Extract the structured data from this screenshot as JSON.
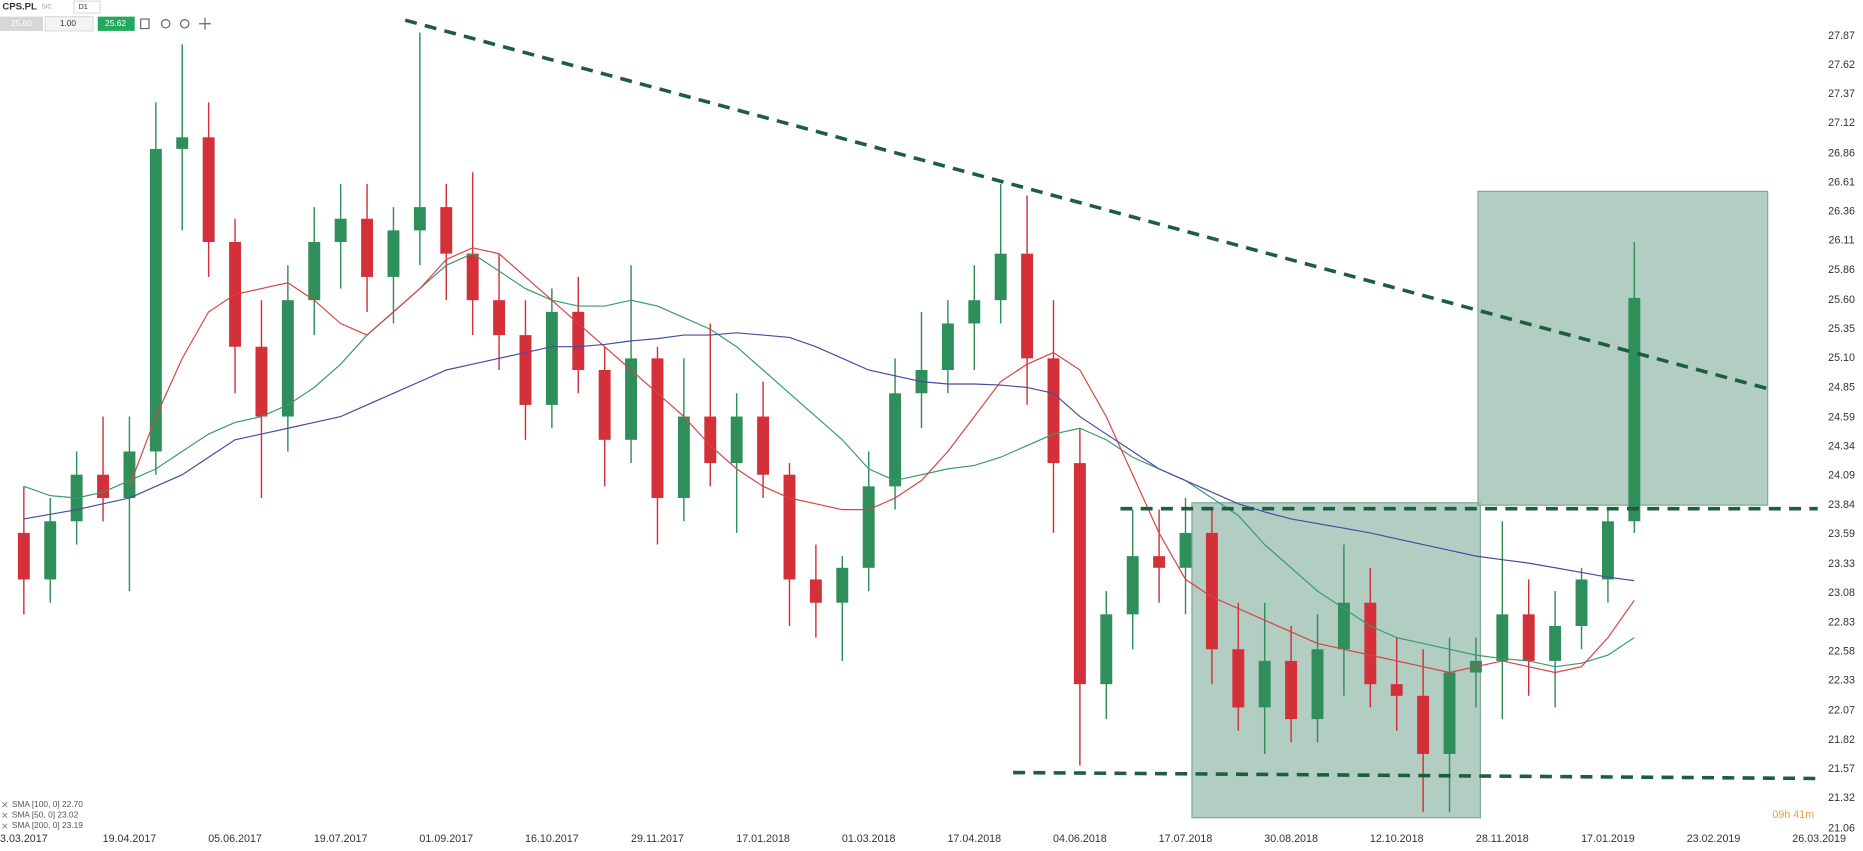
{
  "header": {
    "symbol": "CPS.PL",
    "market": "SIC",
    "timeframe": "D1",
    "bid": "25.60",
    "volume": "1.00",
    "ask": "25.62"
  },
  "countdown": "09h 41m",
  "chart_data": {
    "type": "candlestick",
    "categories": [
      "3.03.2017",
      null,
      null,
      null,
      "19.04.2017",
      null,
      null,
      null,
      "05.06.2017",
      null,
      null,
      null,
      "19.07.2017",
      null,
      null,
      null,
      "01.09.2017",
      null,
      null,
      null,
      "16.10.2017",
      null,
      null,
      null,
      "29.11.2017",
      null,
      null,
      null,
      "17.01.2018",
      null,
      null,
      null,
      "01.03.2018",
      null,
      null,
      null,
      "17.04.2018",
      null,
      null,
      null,
      "04.06.2018",
      null,
      null,
      null,
      "17.07.2018",
      null,
      null,
      null,
      "30.08.2018",
      null,
      null,
      null,
      "12.10.2018",
      null,
      null,
      null,
      "28.11.2018",
      null,
      null,
      null,
      "17.01.2019",
      null,
      null,
      null,
      "23.02.2019",
      null,
      null,
      null,
      "26.03.2019"
    ],
    "candles": {
      "open": [
        23.6,
        23.2,
        23.7,
        24.1,
        23.9,
        24.3,
        26.9,
        27.0,
        26.1,
        25.2,
        24.6,
        25.6,
        26.1,
        26.3,
        25.8,
        26.2,
        26.4,
        26.0,
        25.6,
        25.3,
        24.7,
        25.5,
        25.0,
        24.4,
        25.1,
        23.9,
        24.6,
        24.2,
        24.6,
        24.1,
        23.2,
        23.0,
        23.3,
        24.0,
        24.8,
        25.0,
        25.4,
        25.6,
        26.0,
        25.1,
        24.2,
        22.3,
        22.9,
        23.4,
        23.3,
        23.6,
        22.6,
        22.1,
        22.5,
        22.0,
        22.6,
        23.0,
        22.3,
        22.2,
        21.7,
        22.4,
        22.5,
        22.9,
        22.5,
        22.8,
        23.2,
        23.7,
        null,
        null,
        null,
        null,
        null,
        null,
        null
      ],
      "high": [
        24.0,
        23.9,
        24.3,
        24.6,
        24.6,
        27.3,
        27.8,
        27.3,
        26.3,
        25.6,
        25.9,
        26.4,
        26.6,
        26.6,
        26.4,
        27.9,
        26.6,
        26.7,
        26.0,
        25.6,
        25.7,
        25.8,
        25.2,
        25.9,
        25.2,
        25.1,
        25.4,
        24.8,
        24.9,
        24.2,
        23.5,
        23.4,
        24.3,
        25.1,
        25.5,
        25.6,
        25.9,
        26.6,
        26.5,
        25.6,
        24.5,
        23.1,
        23.8,
        23.8,
        23.9,
        23.8,
        23.0,
        23.0,
        22.8,
        22.9,
        23.5,
        23.3,
        22.7,
        22.6,
        22.7,
        22.7,
        23.7,
        23.2,
        23.1,
        23.3,
        23.8,
        26.1,
        null,
        null,
        null,
        null,
        null,
        null,
        null
      ],
      "low": [
        22.9,
        23.0,
        23.5,
        23.7,
        23.1,
        24.1,
        26.2,
        25.8,
        24.8,
        23.9,
        24.3,
        25.3,
        25.7,
        25.5,
        25.4,
        25.9,
        25.6,
        25.3,
        25.0,
        24.4,
        24.5,
        24.8,
        24.0,
        24.2,
        23.5,
        23.7,
        24.0,
        23.6,
        23.9,
        22.8,
        22.7,
        22.5,
        23.1,
        23.8,
        24.5,
        24.8,
        25.0,
        25.4,
        24.7,
        23.6,
        21.6,
        22.0,
        22.6,
        23.0,
        22.9,
        22.3,
        21.9,
        21.7,
        21.8,
        21.8,
        22.2,
        22.1,
        21.9,
        21.2,
        21.2,
        22.1,
        22.0,
        22.2,
        22.1,
        22.6,
        23.0,
        23.6,
        null,
        null,
        null,
        null,
        null,
        null,
        null
      ],
      "close": [
        23.2,
        23.7,
        24.1,
        23.9,
        24.3,
        26.9,
        27.0,
        26.1,
        25.2,
        24.6,
        25.6,
        26.1,
        26.3,
        25.8,
        26.2,
        26.4,
        26.0,
        25.6,
        25.3,
        24.7,
        25.5,
        25.0,
        24.4,
        25.1,
        23.9,
        24.6,
        24.2,
        24.6,
        24.1,
        23.2,
        23.0,
        23.3,
        24.0,
        24.8,
        25.0,
        25.4,
        25.6,
        26.0,
        25.1,
        24.2,
        22.3,
        22.9,
        23.4,
        23.3,
        23.6,
        22.6,
        22.1,
        22.5,
        22.0,
        22.6,
        23.0,
        22.3,
        22.2,
        21.7,
        22.4,
        22.5,
        22.9,
        22.5,
        22.8,
        23.2,
        23.7,
        25.62,
        null,
        null,
        null,
        null,
        null,
        null,
        null
      ]
    },
    "up_color": "#2f8f5b",
    "down_color": "#d3303a",
    "series": [
      {
        "name": "SMA [100, 0] 22.70",
        "color": "#3a9a6e",
        "values": [
          24.0,
          23.92,
          23.9,
          23.95,
          24.05,
          24.15,
          24.3,
          24.45,
          24.55,
          24.6,
          24.7,
          24.85,
          25.05,
          25.3,
          25.5,
          25.7,
          25.9,
          26.0,
          25.85,
          25.7,
          25.6,
          25.55,
          25.55,
          25.6,
          25.55,
          25.45,
          25.35,
          25.2,
          25.0,
          24.8,
          24.6,
          24.4,
          24.15,
          24.05,
          24.1,
          24.15,
          24.18,
          24.25,
          24.35,
          24.45,
          24.5,
          24.4,
          24.25,
          24.15,
          24.05,
          23.9,
          23.75,
          23.5,
          23.3,
          23.1,
          22.95,
          22.8,
          22.7,
          22.65,
          22.6,
          22.55,
          22.52,
          22.5,
          22.45,
          22.48,
          22.55,
          22.7,
          null,
          null,
          null,
          null,
          null,
          null,
          null
        ]
      },
      {
        "name": "SMA [50, 0] 23.02",
        "color": "#d64545",
        "values": [
          null,
          null,
          null,
          null,
          24.0,
          24.6,
          25.1,
          25.5,
          25.65,
          25.7,
          25.75,
          25.6,
          25.4,
          25.3,
          25.5,
          25.7,
          25.95,
          26.05,
          26.0,
          25.8,
          25.6,
          25.4,
          25.2,
          25.0,
          24.8,
          24.6,
          24.35,
          24.15,
          24.0,
          23.9,
          23.85,
          23.8,
          23.8,
          23.9,
          24.05,
          24.3,
          24.6,
          24.9,
          25.05,
          25.15,
          25.0,
          24.6,
          24.1,
          23.6,
          23.2,
          23.05,
          22.95,
          22.85,
          22.75,
          22.65,
          22.6,
          22.55,
          22.5,
          22.45,
          22.4,
          22.45,
          22.5,
          22.45,
          22.4,
          22.45,
          22.7,
          23.02,
          null,
          null,
          null,
          null,
          null,
          null,
          null
        ]
      },
      {
        "name": "SMA [200, 0] 23.19",
        "color": "#4a4aa0",
        "values": [
          23.72,
          23.76,
          23.8,
          23.85,
          23.9,
          24.0,
          24.1,
          24.25,
          24.4,
          24.45,
          24.5,
          24.55,
          24.6,
          24.7,
          24.8,
          24.9,
          25.0,
          25.05,
          25.1,
          25.15,
          25.2,
          25.2,
          25.22,
          25.25,
          25.27,
          25.3,
          25.3,
          25.32,
          25.3,
          25.28,
          25.2,
          25.1,
          25.0,
          24.95,
          24.9,
          24.88,
          24.88,
          24.87,
          24.85,
          24.8,
          24.6,
          24.45,
          24.3,
          24.15,
          24.05,
          23.95,
          23.85,
          23.78,
          23.72,
          23.68,
          23.64,
          23.6,
          23.55,
          23.5,
          23.45,
          23.4,
          23.37,
          23.34,
          23.3,
          23.26,
          23.22,
          23.19,
          null,
          null,
          null,
          null,
          null,
          null,
          null
        ]
      }
    ],
    "ylim": [
      21.05,
      28.18
    ],
    "yticks": [
      27.87,
      27.62,
      27.37,
      27.12,
      26.86,
      26.61,
      26.36,
      26.11,
      25.86,
      {
        "value": 25.6,
        "label": "25.60"
      },
      25.35,
      {
        "value": 25.1,
        "label": "25.10"
      },
      24.85,
      24.59,
      24.34,
      24.09,
      23.84,
      23.59,
      23.33,
      23.08,
      22.83,
      22.58,
      22.33,
      22.07,
      21.82,
      21.57,
      21.32,
      21.06
    ],
    "grid": false,
    "legend": "bottom-left"
  }
}
